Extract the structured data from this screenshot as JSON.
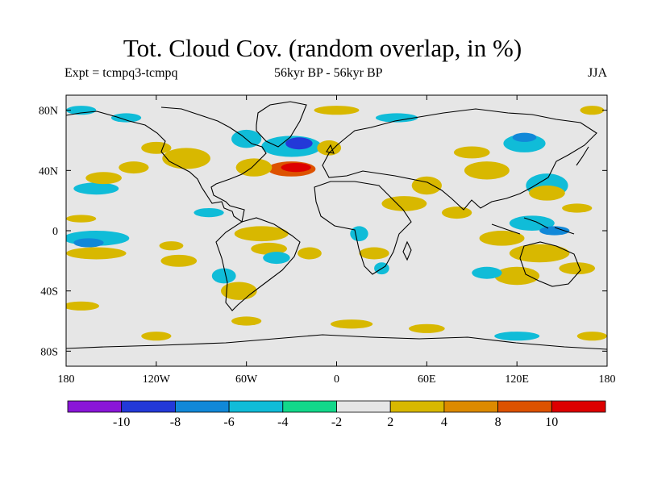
{
  "title": "Tot. Cloud Cov. (random overlap, in %)",
  "subtitle_left": "Expt = tcmpq3-tcmpq",
  "subtitle_center": "56kyr BP - 56kyr BP",
  "subtitle_right": "JJA",
  "lat_ticks": [
    {
      "value": 80,
      "label": "80N"
    },
    {
      "value": 40,
      "label": "40N"
    },
    {
      "value": 0,
      "label": "0"
    },
    {
      "value": -40,
      "label": "40S"
    },
    {
      "value": -80,
      "label": "80S"
    }
  ],
  "lon_ticks": [
    {
      "value": -180,
      "label": "180"
    },
    {
      "value": -120,
      "label": "120W"
    },
    {
      "value": -60,
      "label": "60W"
    },
    {
      "value": 0,
      "label": "0"
    },
    {
      "value": 60,
      "label": "60E"
    },
    {
      "value": 120,
      "label": "120E"
    },
    {
      "value": 180,
      "label": "180"
    }
  ],
  "colorbar": {
    "colors": [
      "#8a16d8",
      "#2339d8",
      "#1188d8",
      "#10bcd8",
      "#12d88a",
      "#e6e6e6",
      "#d8b800",
      "#dc8a00",
      "#dd5200",
      "#dd0000"
    ],
    "labels": [
      "-10",
      "-8",
      "-6",
      "-4",
      "-2",
      "2",
      "4",
      "8",
      "10"
    ]
  },
  "map_colors": {
    "neutral": "#e6e6e6",
    "coast": "#000000"
  },
  "anomalies": [
    {
      "lon": -30,
      "lat": 41,
      "rx": 16,
      "ry": 5,
      "level": 3
    },
    {
      "lon": -27,
      "lat": 42,
      "rx": 10,
      "ry": 3,
      "level": 4
    },
    {
      "lon": -55,
      "lat": 42,
      "rx": 12,
      "ry": 6,
      "level": 1
    },
    {
      "lon": -30,
      "lat": 56,
      "rx": 20,
      "ry": 7,
      "level": -2
    },
    {
      "lon": -25,
      "lat": 58,
      "rx": 9,
      "ry": 4,
      "level": -4
    },
    {
      "lon": -60,
      "lat": 61,
      "rx": 10,
      "ry": 6,
      "level": -2
    },
    {
      "lon": -5,
      "lat": 55,
      "rx": 8,
      "ry": 5,
      "level": 1
    },
    {
      "lon": -100,
      "lat": 48,
      "rx": 16,
      "ry": 7,
      "level": 1
    },
    {
      "lon": -135,
      "lat": 42,
      "rx": 10,
      "ry": 4,
      "level": 1
    },
    {
      "lon": -120,
      "lat": 55,
      "rx": 10,
      "ry": 4,
      "level": 1
    },
    {
      "lon": -160,
      "lat": 28,
      "rx": 15,
      "ry": 4,
      "level": -2
    },
    {
      "lon": -155,
      "lat": 35,
      "rx": 12,
      "ry": 4,
      "level": 1
    },
    {
      "lon": -170,
      "lat": 8,
      "rx": 10,
      "ry": 2.5,
      "level": 1
    },
    {
      "lon": -160,
      "lat": -5,
      "rx": 22,
      "ry": 5,
      "level": -2
    },
    {
      "lon": -165,
      "lat": -8,
      "rx": 10,
      "ry": 3,
      "level": -3
    },
    {
      "lon": -160,
      "lat": -15,
      "rx": 20,
      "ry": 4,
      "level": 1
    },
    {
      "lon": -110,
      "lat": -10,
      "rx": 8,
      "ry": 3,
      "level": 1
    },
    {
      "lon": -105,
      "lat": -20,
      "rx": 12,
      "ry": 4,
      "level": 1
    },
    {
      "lon": -50,
      "lat": -2,
      "rx": 18,
      "ry": 5,
      "level": 1
    },
    {
      "lon": -45,
      "lat": -12,
      "rx": 12,
      "ry": 4,
      "level": 1
    },
    {
      "lon": -85,
      "lat": 12,
      "rx": 10,
      "ry": 3,
      "level": -2
    },
    {
      "lon": -75,
      "lat": -30,
      "rx": 8,
      "ry": 5,
      "level": -2
    },
    {
      "lon": -65,
      "lat": -40,
      "rx": 12,
      "ry": 6,
      "level": 1
    },
    {
      "lon": -40,
      "lat": -18,
      "rx": 9,
      "ry": 4,
      "level": -2
    },
    {
      "lon": -18,
      "lat": -15,
      "rx": 8,
      "ry": 4,
      "level": 1
    },
    {
      "lon": 15,
      "lat": -2,
      "rx": 6,
      "ry": 5,
      "level": -2
    },
    {
      "lon": 25,
      "lat": -15,
      "rx": 10,
      "ry": 4,
      "level": 1
    },
    {
      "lon": 30,
      "lat": -25,
      "rx": 5,
      "ry": 4,
      "level": -2
    },
    {
      "lon": 45,
      "lat": 18,
      "rx": 15,
      "ry": 5,
      "level": 1
    },
    {
      "lon": 60,
      "lat": 30,
      "rx": 10,
      "ry": 6,
      "level": 1
    },
    {
      "lon": 80,
      "lat": 12,
      "rx": 10,
      "ry": 4,
      "level": 1
    },
    {
      "lon": 100,
      "lat": 40,
      "rx": 15,
      "ry": 6,
      "level": 1
    },
    {
      "lon": 90,
      "lat": 52,
      "rx": 12,
      "ry": 4,
      "level": 1
    },
    {
      "lon": 125,
      "lat": 58,
      "rx": 14,
      "ry": 6,
      "level": -2
    },
    {
      "lon": 125,
      "lat": 62,
      "rx": 8,
      "ry": 3,
      "level": -3
    },
    {
      "lon": 140,
      "lat": 30,
      "rx": 14,
      "ry": 8,
      "level": -2
    },
    {
      "lon": 140,
      "lat": 25,
      "rx": 12,
      "ry": 5,
      "level": 1
    },
    {
      "lon": 160,
      "lat": 15,
      "rx": 10,
      "ry": 3,
      "level": 1
    },
    {
      "lon": 130,
      "lat": 5,
      "rx": 15,
      "ry": 5,
      "level": -2
    },
    {
      "lon": 145,
      "lat": 0,
      "rx": 10,
      "ry": 3,
      "level": -3
    },
    {
      "lon": 110,
      "lat": -5,
      "rx": 15,
      "ry": 5,
      "level": 1
    },
    {
      "lon": 135,
      "lat": -15,
      "rx": 20,
      "ry": 6,
      "level": 1
    },
    {
      "lon": 120,
      "lat": -30,
      "rx": 15,
      "ry": 6,
      "level": 1
    },
    {
      "lon": 100,
      "lat": -28,
      "rx": 10,
      "ry": 4,
      "level": -2
    },
    {
      "lon": 160,
      "lat": -25,
      "rx": 12,
      "ry": 4,
      "level": 1
    },
    {
      "lon": -170,
      "lat": -50,
      "rx": 12,
      "ry": 3,
      "level": 1
    },
    {
      "lon": -60,
      "lat": -60,
      "rx": 10,
      "ry": 3,
      "level": 1
    },
    {
      "lon": 10,
      "lat": -62,
      "rx": 14,
      "ry": 3,
      "level": 1
    },
    {
      "lon": 60,
      "lat": -65,
      "rx": 12,
      "ry": 3,
      "level": 1
    },
    {
      "lon": 120,
      "lat": -70,
      "rx": 15,
      "ry": 3,
      "level": -2
    },
    {
      "lon": 170,
      "lat": -70,
      "rx": 10,
      "ry": 3,
      "level": 1
    },
    {
      "lon": -120,
      "lat": -70,
      "rx": 10,
      "ry": 3,
      "level": 1
    },
    {
      "lon": -140,
      "lat": 75,
      "rx": 10,
      "ry": 3,
      "level": -2
    },
    {
      "lon": 40,
      "lat": 75,
      "rx": 14,
      "ry": 3,
      "level": -2
    },
    {
      "lon": 0,
      "lat": 80,
      "rx": 15,
      "ry": 3,
      "level": 1
    },
    {
      "lon": -170,
      "lat": 80,
      "rx": 10,
      "ry": 3,
      "level": -2
    },
    {
      "lon": 170,
      "lat": 80,
      "rx": 8,
      "ry": 3,
      "level": 1
    }
  ]
}
